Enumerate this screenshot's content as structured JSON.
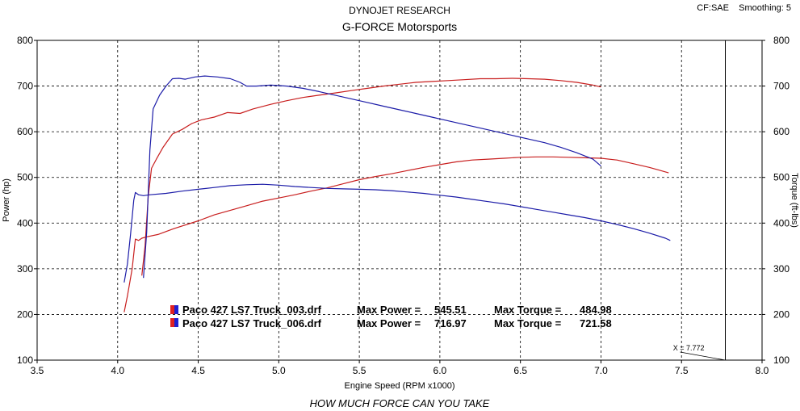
{
  "header": {
    "title": "DYNOJET RESEARCH",
    "subtitle": "G-FORCE Motorsports",
    "settings": "CF:SAE    Smoothing: 5"
  },
  "footer": {
    "tagline": "HOW MUCH FORCE CAN YOU TAKE"
  },
  "colors": {
    "run_003": "#1c1ca8",
    "run_006": "#c81e1e",
    "grid": "#000000",
    "frame": "#000000"
  },
  "chart_data": {
    "type": "line",
    "title": "DYNOJET RESEARCH",
    "subtitle": "G-FORCE Motorsports",
    "xlabel": "Engine Speed (RPM x1000)",
    "ylabel_left": "Power (hp)",
    "ylabel_right": "Torque (ft-lbs)",
    "xlim": [
      3.5,
      8.0
    ],
    "ylim": [
      100,
      800
    ],
    "xticks": [
      "3.5",
      "4.0",
      "4.5",
      "5.0",
      "5.5",
      "6.0",
      "6.5",
      "7.0",
      "7.5",
      "8.0"
    ],
    "yticks": [
      "100",
      "200",
      "300",
      "400",
      "500",
      "600",
      "700",
      "800"
    ],
    "grid": true,
    "cursor": {
      "x": 7.772,
      "label": "X = 7.772"
    },
    "legend": [
      {
        "file": "Paco 427 LS7 Truck_003.drf",
        "max_power_label": "Max Power =",
        "max_power": "545.51",
        "max_torque_label": "Max Torque =",
        "max_torque": "484.98"
      },
      {
        "file": "Paco 427 LS7 Truck_006.drf",
        "max_power_label": "Max Power =",
        "max_power": "716.97",
        "max_torque_label": "Max Torque =",
        "max_torque": "721.58"
      }
    ],
    "series": [
      {
        "run": "003",
        "measure": "power",
        "color": "#c81e1e",
        "points": [
          [
            4.04,
            205
          ],
          [
            4.06,
            240
          ],
          [
            4.09,
            300
          ],
          [
            4.11,
            365
          ],
          [
            4.13,
            362
          ],
          [
            4.15,
            367
          ],
          [
            4.18,
            370
          ],
          [
            4.25,
            375
          ],
          [
            4.35,
            388
          ],
          [
            4.5,
            405
          ],
          [
            4.6,
            418
          ],
          [
            4.7,
            428
          ],
          [
            4.8,
            438
          ],
          [
            4.9,
            448
          ],
          [
            5.0,
            455
          ],
          [
            5.1,
            462
          ],
          [
            5.2,
            470
          ],
          [
            5.3,
            477
          ],
          [
            5.4,
            486
          ],
          [
            5.5,
            495
          ],
          [
            5.6,
            502
          ],
          [
            5.7,
            508
          ],
          [
            5.8,
            515
          ],
          [
            5.9,
            522
          ],
          [
            6.0,
            528
          ],
          [
            6.1,
            534
          ],
          [
            6.2,
            538
          ],
          [
            6.3,
            540
          ],
          [
            6.4,
            542
          ],
          [
            6.5,
            544
          ],
          [
            6.6,
            545
          ],
          [
            6.7,
            545
          ],
          [
            6.8,
            544
          ],
          [
            6.9,
            543
          ],
          [
            7.0,
            542
          ],
          [
            7.1,
            538
          ],
          [
            7.2,
            530
          ],
          [
            7.3,
            522
          ],
          [
            7.35,
            517
          ],
          [
            7.42,
            510
          ]
        ]
      },
      {
        "run": "003",
        "measure": "torque",
        "color": "#1c1ca8",
        "points": [
          [
            4.04,
            270
          ],
          [
            4.06,
            310
          ],
          [
            4.08,
            375
          ],
          [
            4.1,
            450
          ],
          [
            4.11,
            467
          ],
          [
            4.13,
            462
          ],
          [
            4.16,
            460
          ],
          [
            4.2,
            462
          ],
          [
            4.3,
            465
          ],
          [
            4.4,
            470
          ],
          [
            4.5,
            474
          ],
          [
            4.6,
            478
          ],
          [
            4.7,
            482
          ],
          [
            4.8,
            484
          ],
          [
            4.9,
            485
          ],
          [
            5.0,
            483
          ],
          [
            5.1,
            480
          ],
          [
            5.2,
            478
          ],
          [
            5.3,
            476
          ],
          [
            5.4,
            475
          ],
          [
            5.5,
            474
          ],
          [
            5.6,
            473
          ],
          [
            5.7,
            471
          ],
          [
            5.8,
            468
          ],
          [
            5.9,
            465
          ],
          [
            6.0,
            461
          ],
          [
            6.1,
            457
          ],
          [
            6.2,
            452
          ],
          [
            6.3,
            447
          ],
          [
            6.4,
            442
          ],
          [
            6.5,
            436
          ],
          [
            6.6,
            430
          ],
          [
            6.7,
            424
          ],
          [
            6.8,
            418
          ],
          [
            6.9,
            412
          ],
          [
            7.0,
            405
          ],
          [
            7.1,
            397
          ],
          [
            7.2,
            388
          ],
          [
            7.3,
            378
          ],
          [
            7.4,
            367
          ],
          [
            7.43,
            362
          ]
        ]
      },
      {
        "run": "006",
        "measure": "power",
        "color": "#c81e1e",
        "points": [
          [
            4.15,
            285
          ],
          [
            4.17,
            350
          ],
          [
            4.19,
            460
          ],
          [
            4.21,
            520
          ],
          [
            4.24,
            540
          ],
          [
            4.28,
            565
          ],
          [
            4.34,
            595
          ],
          [
            4.4,
            605
          ],
          [
            4.46,
            618
          ],
          [
            4.52,
            626
          ],
          [
            4.6,
            632
          ],
          [
            4.68,
            642
          ],
          [
            4.76,
            640
          ],
          [
            4.84,
            650
          ],
          [
            4.95,
            660
          ],
          [
            5.05,
            668
          ],
          [
            5.15,
            675
          ],
          [
            5.25,
            680
          ],
          [
            5.35,
            685
          ],
          [
            5.45,
            690
          ],
          [
            5.55,
            695
          ],
          [
            5.65,
            700
          ],
          [
            5.75,
            704
          ],
          [
            5.85,
            708
          ],
          [
            5.95,
            710
          ],
          [
            6.05,
            712
          ],
          [
            6.15,
            714
          ],
          [
            6.25,
            716
          ],
          [
            6.35,
            716
          ],
          [
            6.45,
            717
          ],
          [
            6.55,
            716
          ],
          [
            6.65,
            715
          ],
          [
            6.75,
            712
          ],
          [
            6.85,
            708
          ],
          [
            6.95,
            702
          ],
          [
            7.0,
            698
          ]
        ]
      },
      {
        "run": "006",
        "measure": "torque",
        "color": "#1c1ca8",
        "points": [
          [
            4.16,
            280
          ],
          [
            4.18,
            380
          ],
          [
            4.2,
            560
          ],
          [
            4.22,
            650
          ],
          [
            4.26,
            680
          ],
          [
            4.3,
            700
          ],
          [
            4.34,
            716
          ],
          [
            4.38,
            717
          ],
          [
            4.42,
            715
          ],
          [
            4.48,
            720
          ],
          [
            4.54,
            722
          ],
          [
            4.62,
            720
          ],
          [
            4.7,
            716
          ],
          [
            4.76,
            708
          ],
          [
            4.8,
            700
          ],
          [
            4.86,
            700
          ],
          [
            4.95,
            702
          ],
          [
            5.05,
            700
          ],
          [
            5.15,
            695
          ],
          [
            5.25,
            688
          ],
          [
            5.35,
            680
          ],
          [
            5.45,
            672
          ],
          [
            5.55,
            664
          ],
          [
            5.65,
            656
          ],
          [
            5.75,
            648
          ],
          [
            5.85,
            640
          ],
          [
            5.95,
            632
          ],
          [
            6.05,
            624
          ],
          [
            6.15,
            616
          ],
          [
            6.25,
            608
          ],
          [
            6.35,
            600
          ],
          [
            6.45,
            592
          ],
          [
            6.55,
            584
          ],
          [
            6.65,
            576
          ],
          [
            6.75,
            566
          ],
          [
            6.85,
            554
          ],
          [
            6.95,
            540
          ],
          [
            7.0,
            525
          ]
        ]
      }
    ]
  }
}
